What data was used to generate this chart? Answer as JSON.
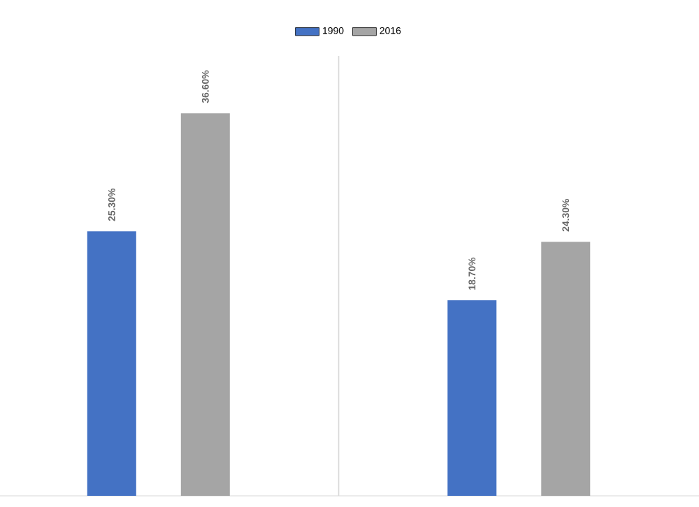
{
  "chart_data": {
    "type": "bar",
    "categories": [
      null,
      null
    ],
    "series": [
      {
        "name": "1990",
        "color": "#4472c4",
        "values": [
          25.3,
          18.7
        ],
        "value_labels": [
          "25.30%",
          "18.70%"
        ]
      },
      {
        "name": "2016",
        "color": "#a5a5a5",
        "values": [
          36.6,
          24.3
        ],
        "value_labels": [
          "36.60%",
          "24.30%"
        ]
      }
    ],
    "grid": "x",
    "legend": "top"
  }
}
